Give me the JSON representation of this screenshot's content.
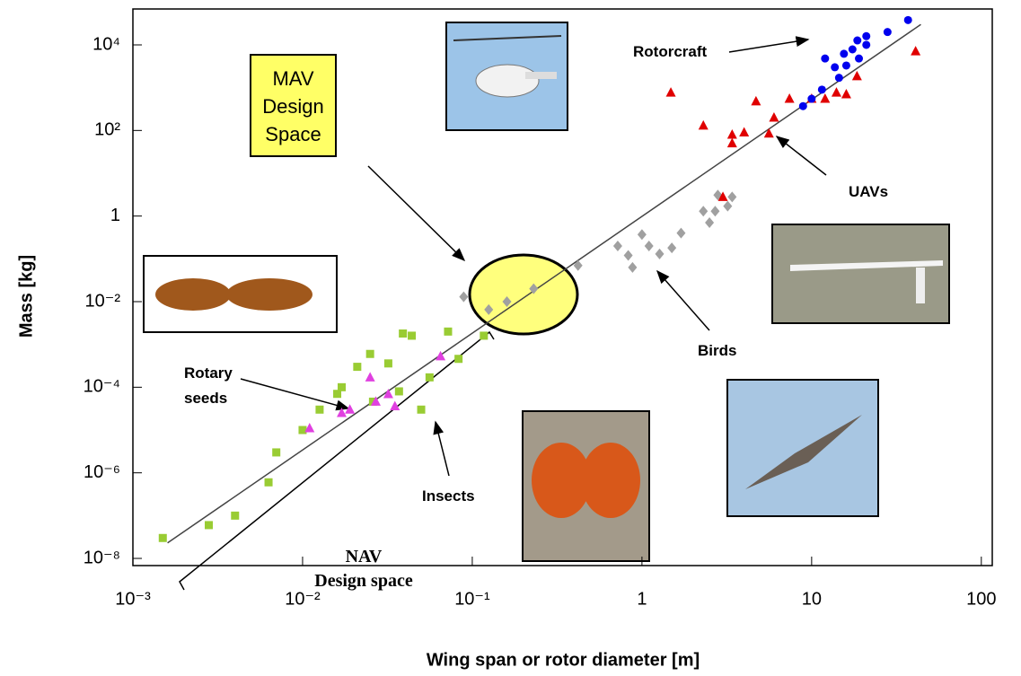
{
  "chart_data": {
    "type": "scatter",
    "log_x": true,
    "log_y": true,
    "x_label": "Wing span or rotor diameter [m]",
    "y_label": "Mass [kg]",
    "xlim": [
      0.001,
      116
    ],
    "ylim": [
      6.8e-09,
      69000
    ],
    "xticks": [
      {
        "value": 0.001,
        "label": "10⁻³"
      },
      {
        "value": 0.01,
        "label": "10⁻²"
      },
      {
        "value": 0.1,
        "label": "10⁻¹"
      },
      1,
      10,
      100
    ],
    "yticks": [
      {
        "value": 1e-08,
        "label": "10⁻⁸"
      },
      {
        "value": 1e-06,
        "label": "10⁻⁶"
      },
      {
        "value": 0.0001,
        "label": "10⁻⁴"
      },
      {
        "value": 0.01,
        "label": "10⁻²"
      },
      1,
      {
        "value": 100,
        "label": "10²"
      },
      {
        "value": 10000,
        "label": "10⁴"
      }
    ],
    "fit_line": {
      "x": [
        0.0016,
        44
      ],
      "y": [
        2.3e-08,
        30000
      ],
      "color": "#444444"
    },
    "series": [
      {
        "marker": "square",
        "color": "#99cc33",
        "x": [
          0.0015,
          0.0028,
          0.004,
          0.0063,
          0.007,
          0.01,
          0.0126,
          0.016,
          0.017,
          0.021,
          0.025,
          0.032,
          0.039,
          0.044,
          0.05,
          0.056,
          0.072,
          0.083,
          0.117,
          0.037,
          0.026
        ],
        "values": [
          3e-08,
          6e-08,
          1e-07,
          6e-07,
          3e-06,
          1e-05,
          3e-05,
          7e-05,
          0.0001,
          0.0003,
          0.0006,
          0.00036,
          0.0018,
          0.0016,
          3e-05,
          0.00017,
          0.002,
          0.00046,
          0.0016,
          8e-05,
          4.6e-05
        ]
      },
      {
        "marker": "triangle",
        "color": "#e040e0",
        "x": [
          0.011,
          0.017,
          0.019,
          0.025,
          0.027,
          0.032,
          0.035,
          0.065
        ],
        "values": [
          1.1e-05,
          2.5e-05,
          3e-05,
          0.00017,
          4.6e-05,
          6.9e-05,
          3.6e-05,
          0.00053
        ]
      },
      {
        "marker": "diamond",
        "color": "#a0a0a0",
        "x": [
          0.089,
          0.125,
          0.16,
          0.23,
          0.42,
          0.72,
          0.83,
          0.88,
          1.0,
          1.1,
          1.27,
          1.5,
          1.7,
          2.3,
          2.5,
          2.8,
          3.2,
          3.4,
          2.7
        ],
        "values": [
          0.013,
          0.0065,
          0.01,
          0.02,
          0.07,
          0.2,
          0.12,
          0.063,
          0.37,
          0.2,
          0.13,
          0.18,
          0.4,
          1.3,
          0.7,
          3.1,
          1.7,
          2.8,
          1.3
        ]
      },
      {
        "marker": "triangle",
        "color": "#e00000",
        "x": [
          3.0,
          3.4,
          3.4,
          4.0,
          4.7,
          5.6,
          6.0,
          7.4,
          10,
          12,
          14,
          16,
          18.5,
          41,
          1.48,
          2.3
        ],
        "values": [
          2.8,
          80,
          50,
          90,
          480,
          85,
          200,
          550,
          550,
          550,
          770,
          700,
          1850,
          7100,
          770,
          130
        ]
      },
      {
        "marker": "circle",
        "color": "#0000ee",
        "x": [
          8.9,
          10,
          11.5,
          12,
          13.7,
          15.5,
          16,
          17.4,
          18.6,
          21,
          21,
          28,
          37,
          14.5,
          19
        ],
        "values": [
          370,
          550,
          900,
          4800,
          3000,
          6200,
          3300,
          7850,
          12700,
          16000,
          10000,
          20000,
          38000,
          1700,
          4800
        ]
      }
    ],
    "annotations": {
      "mav": [
        "MAV",
        "Design",
        "Space"
      ],
      "nav": [
        "NAV",
        "Design space"
      ],
      "rotorcraft": [
        "Rotorcraft"
      ],
      "uavs": [
        "UAVs"
      ],
      "birds": [
        "Birds"
      ],
      "insects": [
        "Insects"
      ],
      "rotary_seeds": [
        "Rotary",
        "seeds"
      ]
    }
  }
}
